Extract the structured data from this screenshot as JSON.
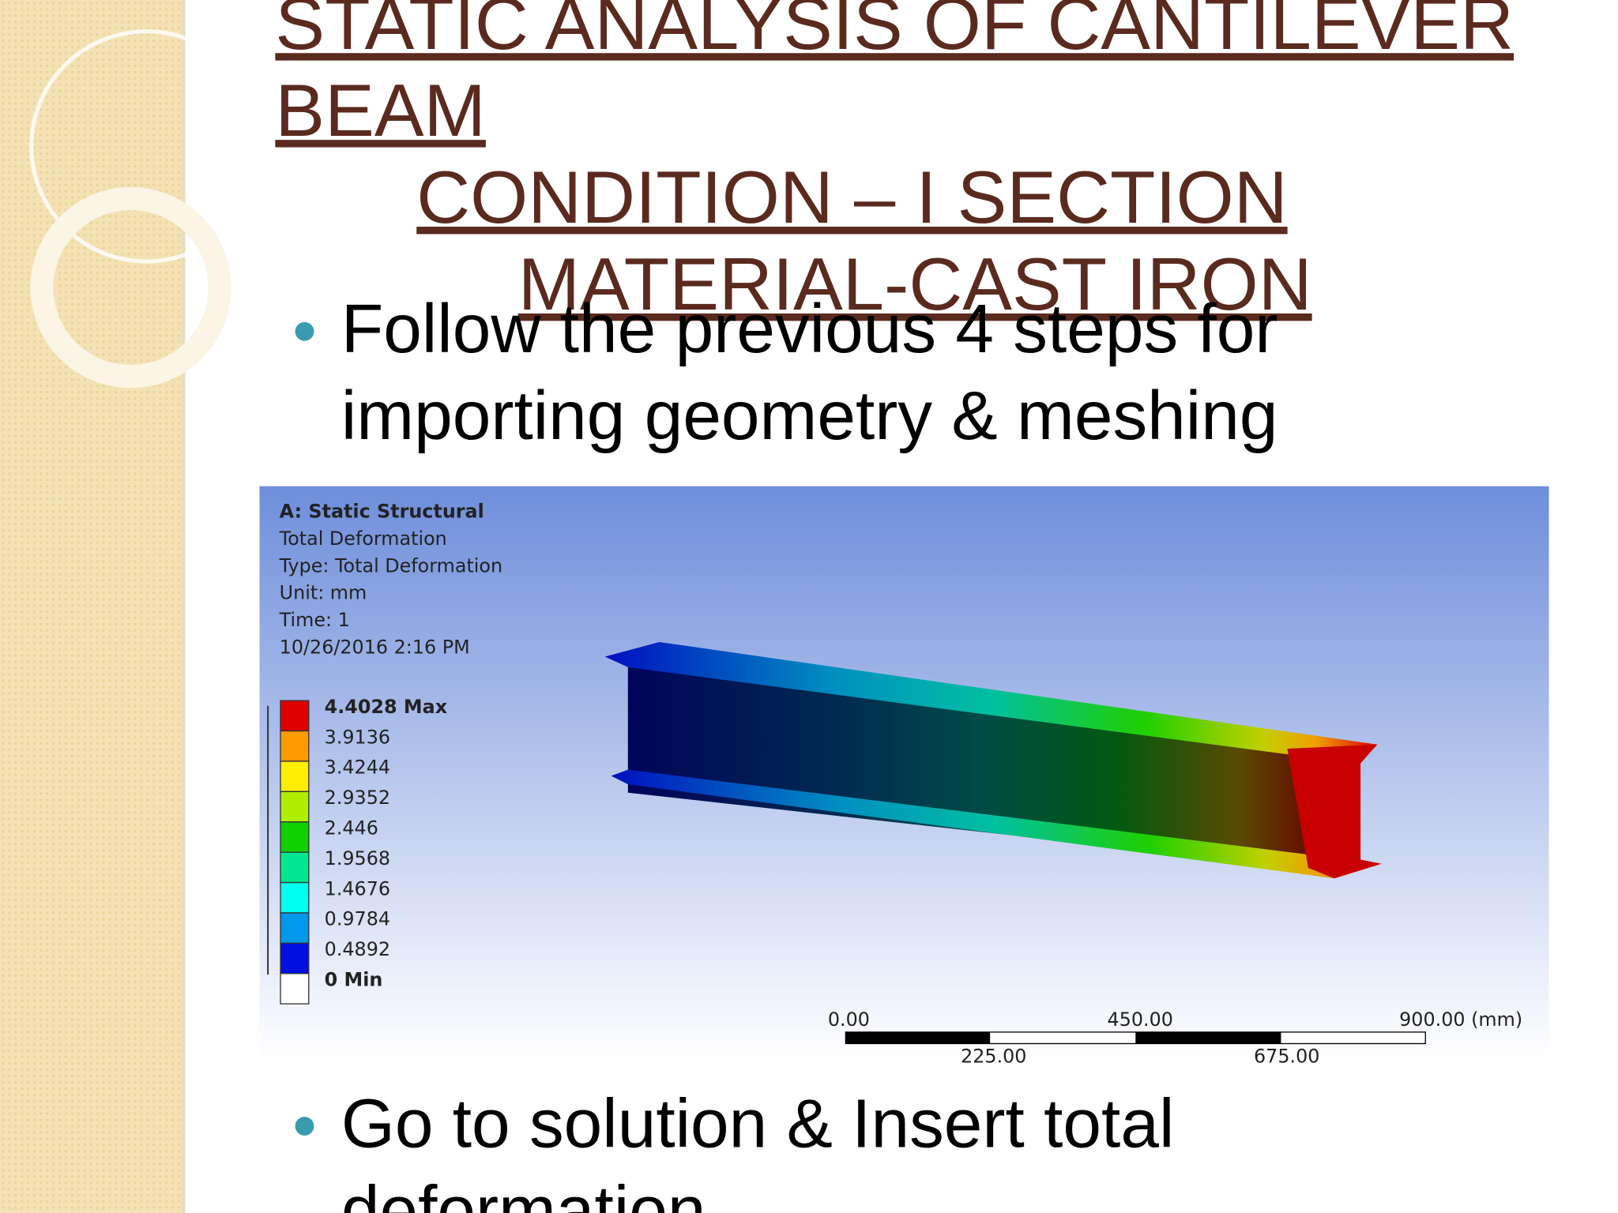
{
  "title": {
    "lines": [
      "STATIC ANALYSIS OF CANTILEVER",
      "BEAM",
      "CONDITION – I SECTION",
      "MATERIAL-CAST IRON"
    ]
  },
  "bullets": [
    {
      "lines": [
        "Follow the previous 4 steps for",
        "importing geometry & meshing"
      ]
    },
    {
      "lines": [
        "Go to solution & Insert total",
        "deformation"
      ]
    }
  ],
  "figure": {
    "header": [
      "A: Static Structural",
      "Total Deformation",
      "Type: Total Deformation",
      "Unit: mm",
      "Time: 1",
      "10/26/2016 2:16 PM"
    ],
    "legend": [
      "4.4028 Max",
      "3.9136",
      "3.4244",
      "2.9352",
      "2.446",
      "1.9568",
      "1.4676",
      "0.9784",
      "0.4892",
      "0 Min"
    ],
    "scale_top": [
      "0.00",
      "450.00",
      "900.00 (mm)"
    ],
    "scale_bottom": [
      "225.00",
      "675.00"
    ]
  }
}
